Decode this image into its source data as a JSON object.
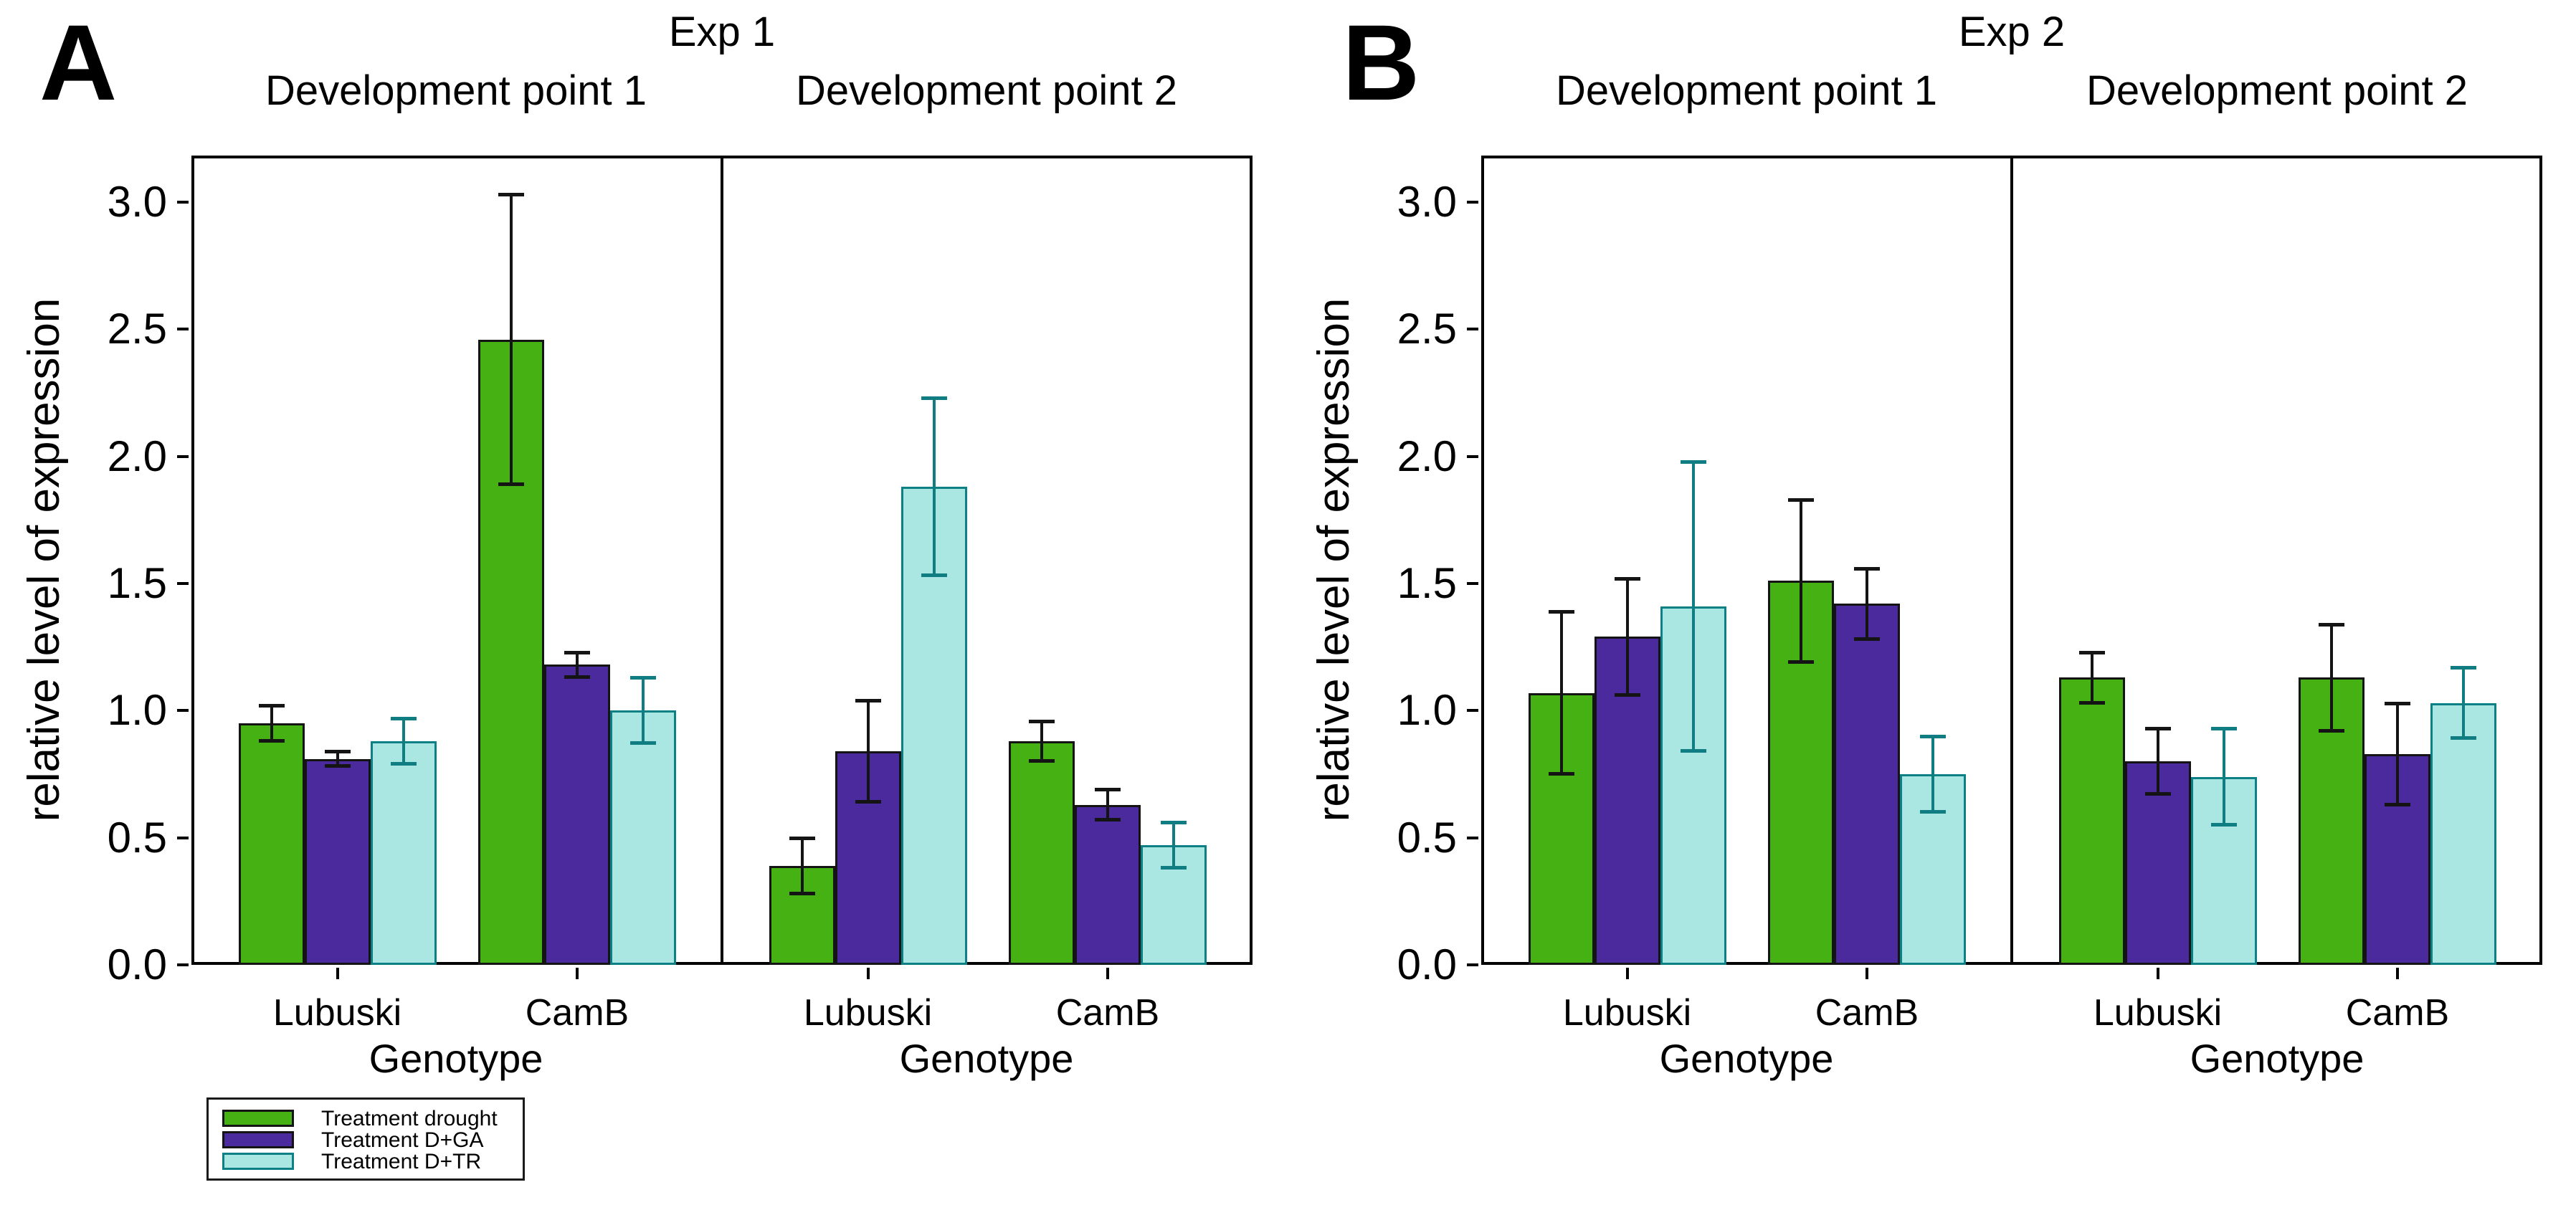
{
  "figure_background": "#ffffff",
  "colors": {
    "treatment_drought_fill": "#46b113",
    "treatment_d_ga_fill": "#4b2a9e",
    "treatment_d_tr_fill": "#aae7e2",
    "treatment_d_tr_border": "#0c8085",
    "bar_border_dark": "#141414",
    "error_bar_dark": "#141414",
    "error_bar_teal": "#0f7d82",
    "axis": "#000000"
  },
  "chart_data": [
    {
      "type": "bar",
      "panel_letter": "A",
      "title": "Exp 1",
      "ylabel": "relative level of expression",
      "xlabel": "Genotype",
      "ylim": [
        0,
        3.18
      ],
      "yticks": [
        0.0,
        0.5,
        1.0,
        1.5,
        2.0,
        2.5,
        3.0
      ],
      "categories": [
        "Lubuski",
        "CamB"
      ],
      "grid": false,
      "facets": [
        {
          "title": "Development point 1",
          "series": [
            {
              "name": "Treatment drought",
              "values": [
                0.95,
                2.46
              ],
              "errors": [
                0.07,
                0.57
              ]
            },
            {
              "name": "Treatment D+GA",
              "values": [
                0.81,
                1.18
              ],
              "errors": [
                0.03,
                0.05
              ]
            },
            {
              "name": "Treatment D+TR",
              "values": [
                0.88,
                1.0
              ],
              "errors": [
                0.09,
                0.13
              ]
            }
          ]
        },
        {
          "title": "Development point 2",
          "series": [
            {
              "name": "Treatment drought",
              "values": [
                0.39,
                0.88
              ],
              "errors": [
                0.11,
                0.08
              ]
            },
            {
              "name": "Treatment D+GA",
              "values": [
                0.84,
                0.63
              ],
              "errors": [
                0.2,
                0.06
              ]
            },
            {
              "name": "Treatment D+TR",
              "values": [
                1.88,
                0.47
              ],
              "errors": [
                0.35,
                0.09
              ]
            }
          ]
        }
      ]
    },
    {
      "type": "bar",
      "panel_letter": "B",
      "title": "Exp 2",
      "ylabel": "relative level of expression",
      "xlabel": "Genotype",
      "ylim": [
        0,
        3.18
      ],
      "yticks": [
        0.0,
        0.5,
        1.0,
        1.5,
        2.0,
        2.5,
        3.0
      ],
      "categories": [
        "Lubuski",
        "CamB"
      ],
      "grid": false,
      "facets": [
        {
          "title": "Development point 1",
          "series": [
            {
              "name": "Treatment drought",
              "values": [
                1.07,
                1.51
              ],
              "errors": [
                0.32,
                0.32
              ]
            },
            {
              "name": "Treatment D+GA",
              "values": [
                1.29,
                1.42
              ],
              "errors": [
                0.23,
                0.14
              ]
            },
            {
              "name": "Treatment D+TR",
              "values": [
                1.41,
                0.75
              ],
              "errors": [
                0.57,
                0.15
              ]
            }
          ]
        },
        {
          "title": "Development point 2",
          "series": [
            {
              "name": "Treatment drought",
              "values": [
                1.13,
                1.13
              ],
              "errors": [
                0.1,
                0.21
              ]
            },
            {
              "name": "Treatment D+GA",
              "values": [
                0.8,
                0.83
              ],
              "errors": [
                0.13,
                0.2
              ]
            },
            {
              "name": "Treatment D+TR",
              "values": [
                0.74,
                1.03
              ],
              "errors": [
                0.19,
                0.14
              ]
            }
          ]
        }
      ]
    }
  ],
  "legend": {
    "entries": [
      {
        "label": "Treatment drought",
        "fill": "#46b113",
        "border": "#141414"
      },
      {
        "label": "Treatment D+GA",
        "fill": "#4b2a9e",
        "border": "#141414"
      },
      {
        "label": "Treatment D+TR",
        "fill": "#aae7e2",
        "border": "#0c8085"
      }
    ]
  }
}
